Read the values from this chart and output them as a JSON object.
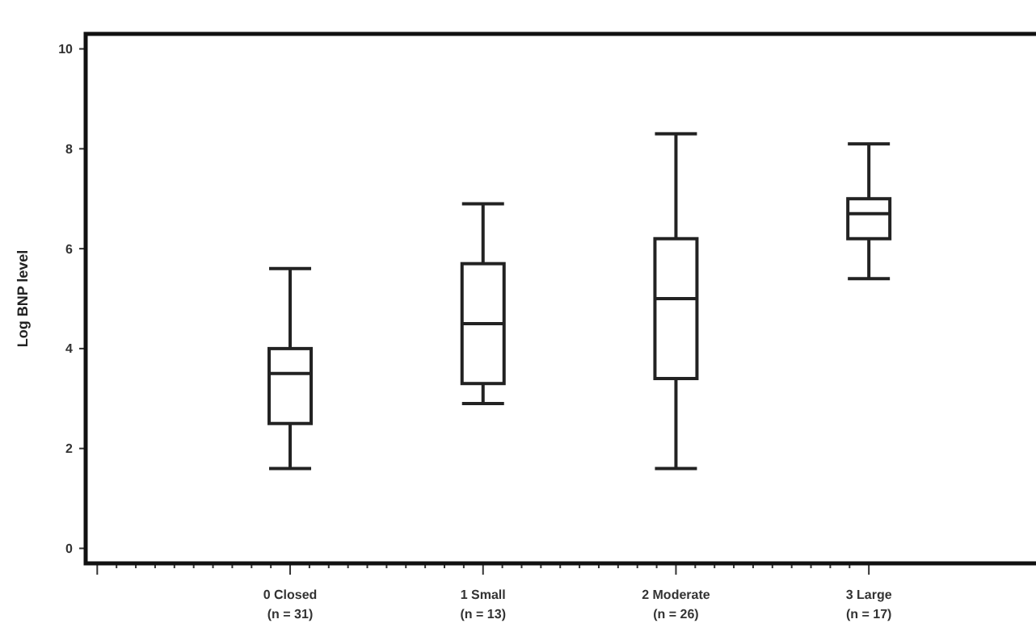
{
  "chart_data": {
    "type": "box",
    "ylabel": "Log BNP level",
    "categories": [
      "0 Closed\n(n = 31)",
      "1 Small\n(n = 13)",
      "2 Moderate\n(n = 26)",
      "3 Large\n(n = 17)"
    ],
    "boxes": [
      {
        "low": 1.6,
        "q1": 2.5,
        "median": 3.5,
        "q3": 4.0,
        "high": 5.6
      },
      {
        "low": 2.9,
        "q1": 3.3,
        "median": 4.5,
        "q3": 5.7,
        "high": 6.9
      },
      {
        "low": 1.6,
        "q1": 3.4,
        "median": 5.0,
        "q3": 6.2,
        "high": 8.3
      },
      {
        "low": 5.4,
        "q1": 6.2,
        "median": 6.7,
        "q3": 7.0,
        "high": 8.1
      }
    ],
    "color": "#222222",
    "ylim": [
      -0.3,
      10.3
    ],
    "yticks": [
      0,
      2,
      4,
      6,
      8,
      10
    ],
    "grid": false
  }
}
